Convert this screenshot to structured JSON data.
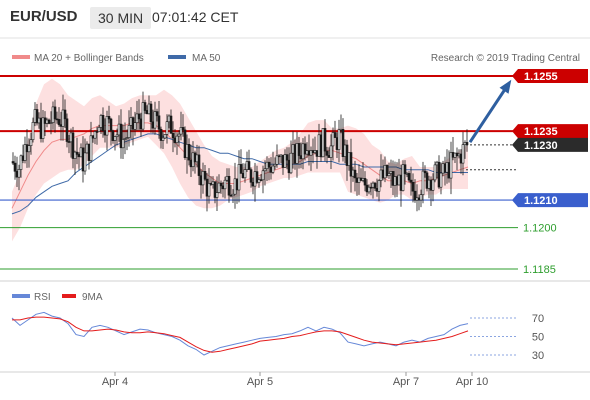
{
  "header": {
    "symbol": "EUR/USD",
    "timeframe": "30 MIN",
    "time": "07:01:42 CET"
  },
  "legend": {
    "bollinger": "MA 20 + Bollinger Bands",
    "ma50": "MA 50",
    "research": "Research © 2019 Trading Central",
    "rsi": "RSI",
    "rsi_ma": "9MA"
  },
  "colors": {
    "bullish_target": "#cc0000",
    "resistance": "#cc0000",
    "support": "#3a5fcd",
    "minor_level": "#2e9e2e",
    "current": "#2b2b2b",
    "arrow": "#2e5fa0",
    "candles": "#1a1a1a",
    "bollinger_fill": "#fde0e0",
    "bollinger_line": "#f08a8a",
    "ma50_line": "#3f6aa8",
    "rsi_line": "#6688d8",
    "rsi_ma_line": "#e41c1c"
  },
  "price_levels": [
    {
      "label": "1.1255",
      "value": 1.1255,
      "type": "resistance"
    },
    {
      "label": "1.1235",
      "value": 1.1235,
      "type": "resistance"
    },
    {
      "label": "1.1230",
      "value": 1.123,
      "type": "current"
    },
    {
      "label": "1.1210",
      "value": 1.121,
      "type": "support"
    },
    {
      "label": "1.1200",
      "value": 1.12,
      "type": "minor"
    },
    {
      "label": "1.1185",
      "value": 1.1185,
      "type": "minor"
    }
  ],
  "chart_data": [
    {
      "type": "candlestick",
      "symbol": "EUR/USD",
      "timeframe": "30 MIN",
      "x_labels": [
        "Apr 4",
        "Apr 5",
        "Apr 7",
        "Apr 10"
      ],
      "y_ticks": [
        1.1255,
        1.1235,
        1.123,
        1.121,
        1.12,
        1.1185
      ],
      "close_path": [
        1.1224,
        1.1222,
        1.1232,
        1.1238,
        1.1236,
        1.1239,
        1.124,
        1.1236,
        1.1228,
        1.1224,
        1.123,
        1.124,
        1.1238,
        1.1235,
        1.1232,
        1.1235,
        1.124,
        1.1241,
        1.1238,
        1.1235,
        1.1237,
        1.1234,
        1.1228,
        1.1223,
        1.1218,
        1.1212,
        1.1215,
        1.1217,
        1.1216,
        1.122,
        1.1219,
        1.1221,
        1.1222,
        1.1223,
        1.1224,
        1.1225,
        1.1227,
        1.1232,
        1.1229,
        1.1231,
        1.1229,
        1.1233,
        1.1225,
        1.1216,
        1.1215,
        1.1218,
        1.1217,
        1.1219,
        1.1216,
        1.1218,
        1.1213,
        1.1215,
        1.1218,
        1.1219,
        1.1219,
        1.1223,
        1.1226,
        1.123
      ],
      "bollinger": {
        "upper": [
          1.1213,
          1.122,
          1.1232,
          1.1245,
          1.1252,
          1.1254,
          1.1252,
          1.1248,
          1.1246,
          1.1244,
          1.1247,
          1.1248,
          1.1246,
          1.1244,
          1.1245,
          1.1247,
          1.1248,
          1.1248,
          1.1248,
          1.125,
          1.1248,
          1.1245,
          1.124,
          1.1235,
          1.123,
          1.1226,
          1.1224,
          1.1223,
          1.1222,
          1.1222,
          1.1222,
          1.1224,
          1.1226,
          1.1228,
          1.1229,
          1.1231,
          1.1234,
          1.1238,
          1.1239,
          1.1239,
          1.1236,
          1.1236,
          1.1237,
          1.1236,
          1.1234,
          1.123,
          1.1228,
          1.1224,
          1.1223,
          1.1225,
          1.1226,
          1.1222,
          1.1222,
          1.1222,
          1.1224,
          1.1226,
          1.1228,
          1.123
        ],
        "lower": [
          1.1195,
          1.12,
          1.1207,
          1.1212,
          1.1216,
          1.1218,
          1.122,
          1.1221,
          1.1221,
          1.1223,
          1.1226,
          1.1229,
          1.1229,
          1.1229,
          1.123,
          1.1231,
          1.1232,
          1.1233,
          1.123,
          1.1227,
          1.1222,
          1.1216,
          1.1211,
          1.1208,
          1.1207,
          1.1207,
          1.1208,
          1.121,
          1.1211,
          1.1212,
          1.1213,
          1.1215,
          1.1216,
          1.1217,
          1.1218,
          1.1218,
          1.1219,
          1.122,
          1.122,
          1.122,
          1.122,
          1.122,
          1.1213,
          1.1212,
          1.1211,
          1.121,
          1.1209,
          1.121,
          1.1212,
          1.1212,
          1.121,
          1.1211,
          1.1212,
          1.1212,
          1.1214,
          1.1214,
          1.1214,
          1.1214
        ],
        "middle": [
          1.1207,
          1.1213,
          1.1219,
          1.1224,
          1.1228,
          1.1231,
          1.1232,
          1.1232,
          1.1233,
          1.1234,
          1.1236,
          1.1237,
          1.1237,
          1.1237,
          1.1237,
          1.1238,
          1.1238,
          1.1238,
          1.1237,
          1.1235,
          1.1232,
          1.1229,
          1.1226,
          1.1223,
          1.122,
          1.1218,
          1.1216,
          1.1216,
          1.1216,
          1.1217,
          1.1218,
          1.1219,
          1.122,
          1.1221,
          1.1222,
          1.1223,
          1.1224,
          1.1226,
          1.1227,
          1.1228,
          1.1228,
          1.1227,
          1.1226,
          1.1225,
          1.1223,
          1.1221,
          1.1219,
          1.1217,
          1.1217,
          1.1217,
          1.1216,
          1.1217,
          1.1217,
          1.1218,
          1.1219,
          1.122,
          1.1221,
          1.1222
        ]
      },
      "ma50": [
        1.1205,
        1.1206,
        1.1208,
        1.1211,
        1.1213,
        1.1215,
        1.1216,
        1.1217,
        1.122,
        1.1222,
        1.1224,
        1.1226,
        1.1228,
        1.123,
        1.1231,
        1.1232,
        1.1233,
        1.1234,
        1.1234,
        1.1233,
        1.1232,
        1.1231,
        1.123,
        1.1229,
        1.1229,
        1.1228,
        1.1227,
        1.1227,
        1.1226,
        1.1225,
        1.1225,
        1.1224,
        1.1223,
        1.1223,
        1.1223,
        1.1223,
        1.1223,
        1.1224,
        1.1224,
        1.1224,
        1.1224,
        1.1223,
        1.1223,
        1.1223,
        1.1222,
        1.1222,
        1.1222,
        1.1222,
        1.1222,
        1.1221,
        1.1221,
        1.1221,
        1.1221,
        1.122,
        1.122,
        1.122,
        1.122,
        1.122
      ],
      "forecast_arrow": {
        "from": 1.1231,
        "to": 1.1254
      },
      "dotted_levels": [
        1.123,
        1.1221
      ]
    },
    {
      "type": "line",
      "name": "RSI",
      "y_ticks": [
        70,
        50,
        30
      ],
      "series": [
        {
          "name": "RSI",
          "values": [
            70,
            62,
            68,
            74,
            76,
            72,
            70,
            64,
            52,
            50,
            60,
            62,
            60,
            56,
            52,
            55,
            58,
            57,
            54,
            52,
            50,
            46,
            40,
            36,
            30,
            34,
            38,
            40,
            42,
            44,
            46,
            48,
            49,
            50,
            52,
            53,
            56,
            60,
            56,
            60,
            58,
            54,
            44,
            42,
            40,
            42,
            44,
            42,
            40,
            44,
            46,
            44,
            48,
            50,
            52,
            58,
            62,
            64
          ]
        },
        {
          "name": "9MA",
          "values": [
            68,
            68,
            70,
            71,
            71,
            70,
            69,
            66,
            60,
            56,
            56,
            57,
            58,
            57,
            55,
            54,
            54,
            55,
            54,
            53,
            51,
            49,
            44,
            39,
            35,
            33,
            34,
            36,
            38,
            40,
            42,
            45,
            46,
            47,
            48,
            50,
            51,
            53,
            55,
            56,
            56,
            55,
            52,
            49,
            46,
            44,
            43,
            42,
            41,
            42,
            43,
            44,
            45,
            46,
            48,
            50,
            53,
            56
          ]
        }
      ]
    }
  ]
}
